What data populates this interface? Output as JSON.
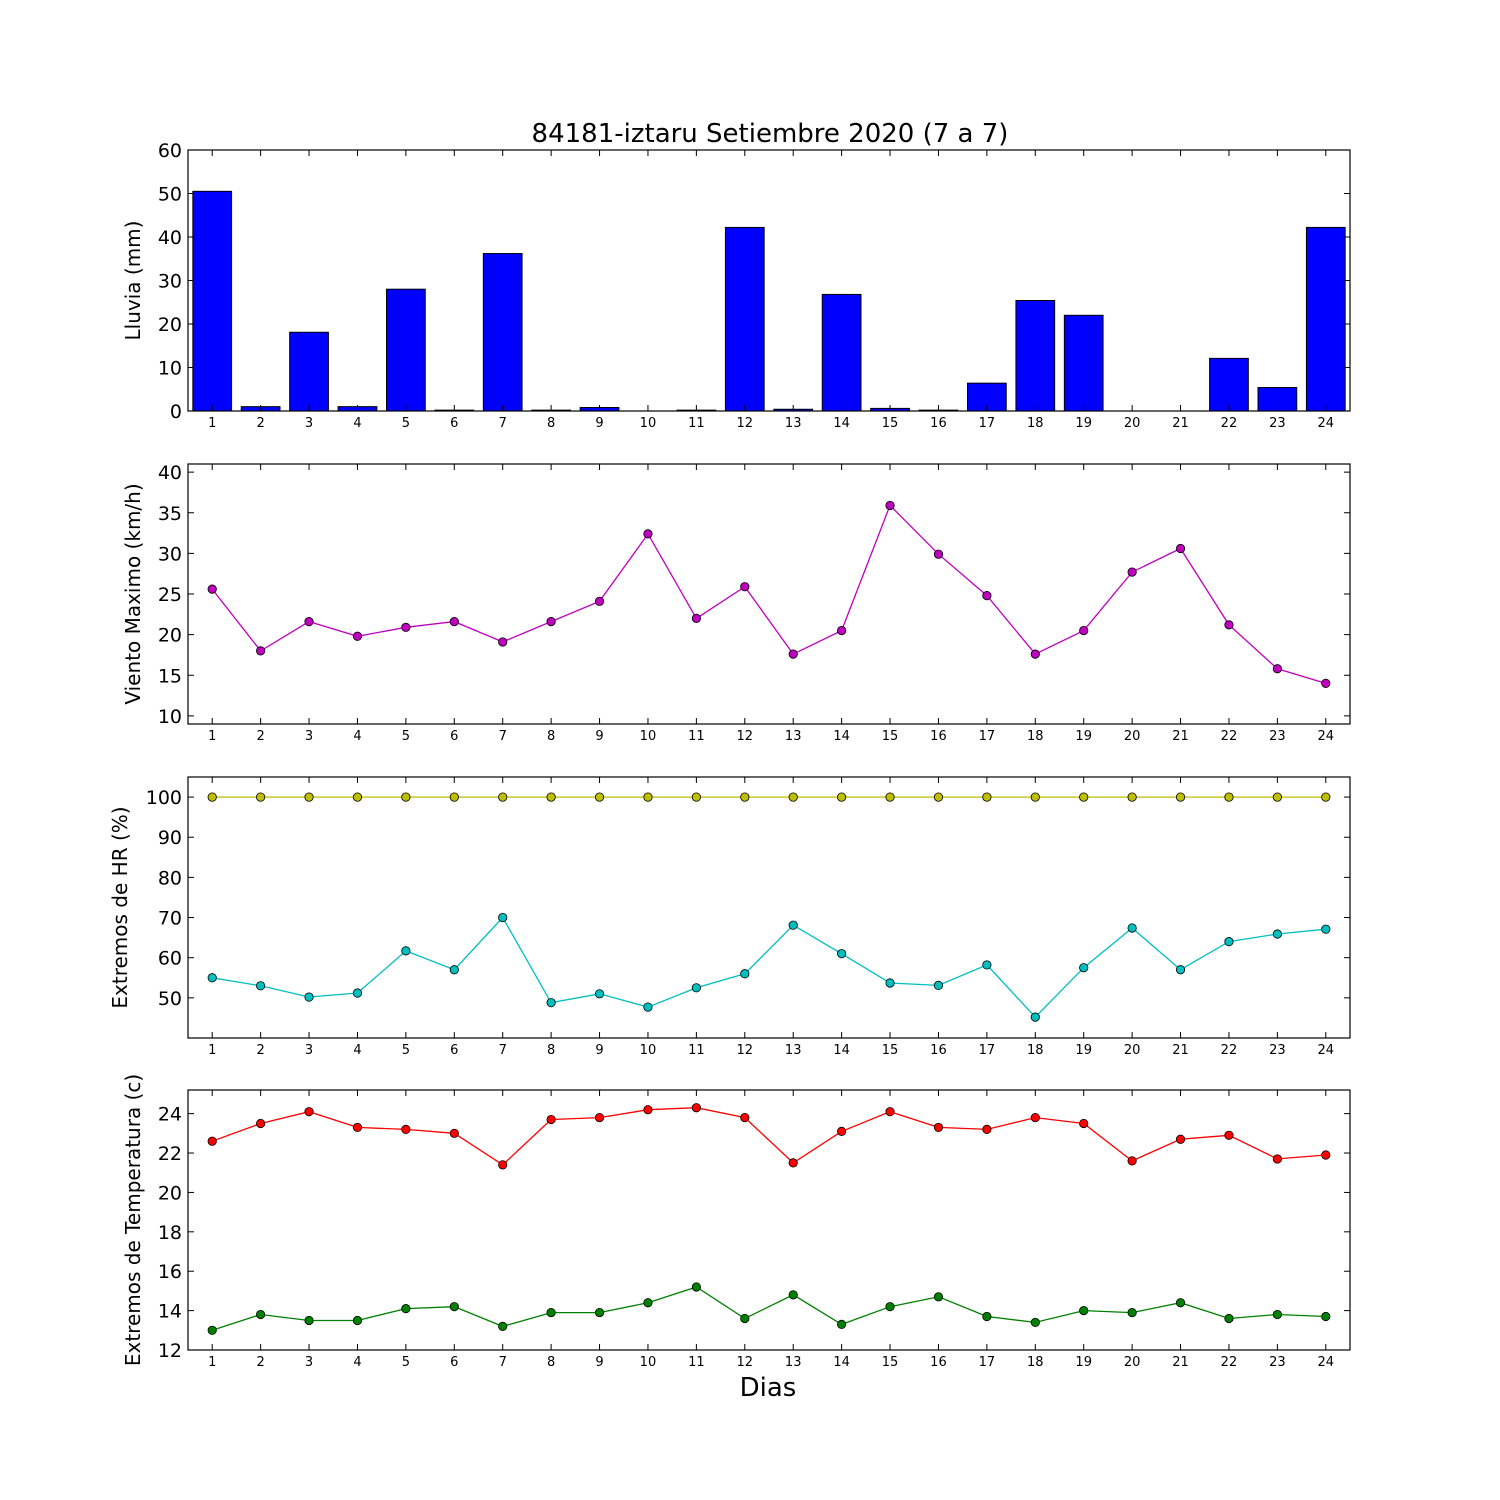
{
  "chart_data": [
    {
      "type": "bar",
      "title": "84181-iztaru Setiembre 2020  (7 a 7)",
      "ylabel": "Lluvia (mm)",
      "ylim": [
        0,
        60
      ],
      "yticks": [
        0,
        10,
        20,
        30,
        40,
        50,
        60
      ],
      "x": [
        1,
        2,
        3,
        4,
        5,
        6,
        7,
        8,
        9,
        10,
        11,
        12,
        13,
        14,
        15,
        16,
        17,
        18,
        19,
        20,
        21,
        22,
        23,
        24
      ],
      "series": [
        {
          "color": "#0000ff",
          "values": [
            50.5,
            1.0,
            18.1,
            1.0,
            28.0,
            0.2,
            36.2,
            0.2,
            0.8,
            0.0,
            0.2,
            42.2,
            0.4,
            26.8,
            0.6,
            0.2,
            6.4,
            25.4,
            22.0,
            0.0,
            0.0,
            12.1,
            5.4,
            42.2
          ]
        }
      ],
      "grid": false
    },
    {
      "type": "line",
      "ylabel": "Viento Maximo (km/h)",
      "ylim": [
        9,
        41
      ],
      "yticks": [
        10,
        15,
        20,
        25,
        30,
        35,
        40
      ],
      "x": [
        1,
        2,
        3,
        4,
        5,
        6,
        7,
        8,
        9,
        10,
        11,
        12,
        13,
        14,
        15,
        16,
        17,
        18,
        19,
        20,
        21,
        22,
        23,
        24
      ],
      "series": [
        {
          "color": "#bf00bf",
          "values": [
            25.6,
            18.0,
            21.6,
            19.8,
            20.9,
            21.6,
            19.1,
            21.6,
            24.1,
            32.4,
            22.0,
            25.9,
            17.6,
            20.5,
            35.9,
            29.9,
            24.8,
            17.6,
            20.5,
            27.7,
            30.6,
            21.2,
            15.8,
            14.0
          ]
        }
      ],
      "grid": false
    },
    {
      "type": "line",
      "ylabel": "Extremos de HR (%)",
      "ylim": [
        40,
        105
      ],
      "yticks": [
        50,
        60,
        70,
        80,
        90,
        100
      ],
      "x": [
        1,
        2,
        3,
        4,
        5,
        6,
        7,
        8,
        9,
        10,
        11,
        12,
        13,
        14,
        15,
        16,
        17,
        18,
        19,
        20,
        21,
        22,
        23,
        24
      ],
      "series": [
        {
          "color": "#bfbf00",
          "values": [
            100,
            100,
            100,
            100,
            100,
            100,
            100,
            100,
            100,
            100,
            100,
            100,
            100,
            100,
            100,
            100,
            100,
            100,
            100,
            100,
            100,
            100,
            100,
            100
          ]
        },
        {
          "color": "#00bfbf",
          "values": [
            55,
            53,
            50.2,
            51.2,
            61.7,
            57,
            70,
            48.8,
            51,
            47.7,
            52.5,
            56,
            68.1,
            61,
            53.7,
            53.1,
            58.2,
            45.2,
            57.5,
            67.4,
            57,
            64,
            65.9,
            67.1
          ]
        }
      ],
      "grid": false
    },
    {
      "type": "line",
      "ylabel": "Extremos de Temperatura (c)",
      "xlabel": "Dias",
      "ylim": [
        12,
        25.2
      ],
      "yticks": [
        12,
        14,
        16,
        18,
        20,
        22,
        24
      ],
      "x": [
        1,
        2,
        3,
        4,
        5,
        6,
        7,
        8,
        9,
        10,
        11,
        12,
        13,
        14,
        15,
        16,
        17,
        18,
        19,
        20,
        21,
        22,
        23,
        24
      ],
      "series": [
        {
          "color": "#ff0000",
          "values": [
            22.6,
            23.5,
            24.1,
            23.3,
            23.2,
            23.0,
            21.4,
            23.7,
            23.8,
            24.2,
            24.3,
            23.8,
            21.5,
            23.1,
            24.1,
            23.3,
            23.2,
            23.8,
            23.5,
            21.6,
            22.7,
            22.9,
            21.7,
            21.9
          ]
        },
        {
          "color": "#008000",
          "values": [
            13.0,
            13.8,
            13.5,
            13.5,
            14.1,
            14.2,
            13.2,
            13.9,
            13.9,
            14.4,
            15.2,
            13.6,
            14.8,
            13.3,
            14.2,
            14.7,
            13.7,
            13.4,
            14.0,
            13.9,
            14.4,
            13.6,
            13.8,
            13.7
          ]
        }
      ],
      "grid": false
    }
  ]
}
